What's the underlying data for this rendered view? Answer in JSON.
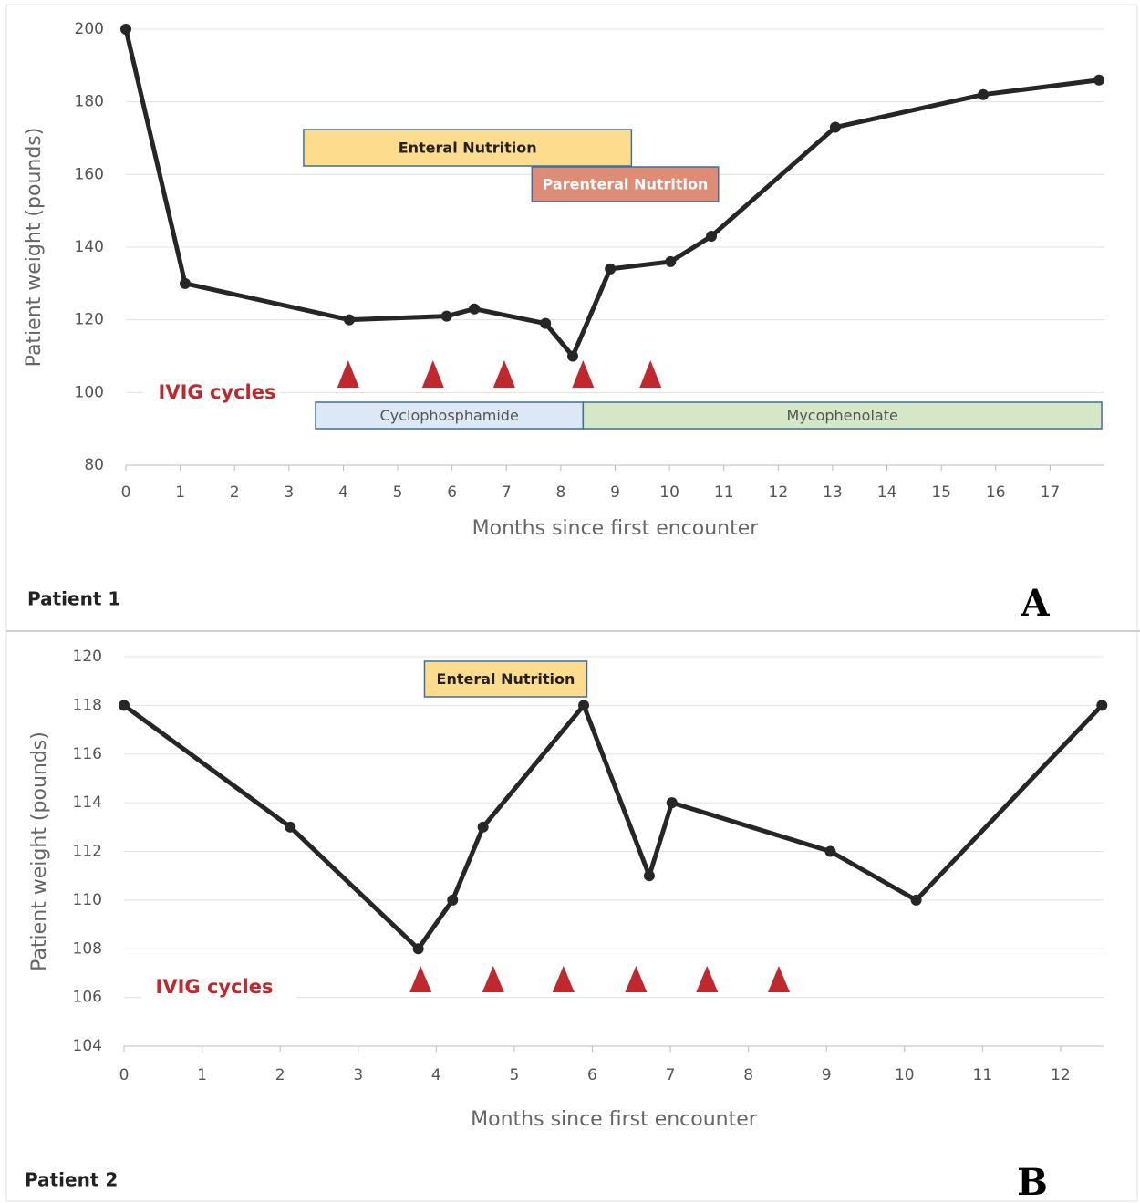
{
  "chart_data": [
    {
      "type": "line",
      "panel": "Patient 1",
      "letter": "A",
      "x_label": "Months since first encounter",
      "y_label": "Patient weight (pounds)",
      "x": [
        0,
        1.09,
        4.11,
        5.9,
        6.41,
        7.72,
        8.22,
        8.91,
        10.02,
        10.77,
        13.05,
        15.77,
        17.9
      ],
      "series": [
        {
          "color": "#262626",
          "values": [
            200,
            130,
            120,
            121,
            123,
            119,
            110,
            134,
            136,
            143,
            173,
            182,
            186
          ]
        }
      ],
      "xlim": [
        0,
        18
      ],
      "ylim": [
        80,
        200
      ],
      "xticks": [
        0,
        1,
        2,
        3,
        4,
        5,
        6,
        7,
        8,
        9,
        10,
        11,
        12,
        13,
        14,
        15,
        16,
        17
      ],
      "yticks": [
        80,
        100,
        120,
        140,
        160,
        180,
        200
      ],
      "grid": true,
      "ivig": {
        "label": "IVIG cycles",
        "color": "#c0282d",
        "x": [
          4.09,
          5.65,
          6.96,
          8.41,
          9.65
        ]
      },
      "spans": [
        {
          "label": "Enteral Nutrition",
          "start": 3.27,
          "end": 9.3,
          "color": "#fddc8e",
          "text_color": "#222222"
        },
        {
          "label": "Parenteral Nutrition",
          "start": 7.47,
          "end": 10.9,
          "color": "#de8c75",
          "text_color": "#ffffff"
        },
        {
          "label": "Cyclophosphamide",
          "start": 3.49,
          "end": 8.41,
          "color": "#dce8f5",
          "text_color": "#555555"
        },
        {
          "label": "Mycophenolate",
          "start": 8.41,
          "end": 17.95,
          "color": "#d6e7c7",
          "text_color": "#555555"
        }
      ]
    },
    {
      "type": "line",
      "panel": "Patient 2",
      "letter": "B",
      "x_label": "Months since first encounter",
      "y_label": "Patient weight (pounds)",
      "x": [
        0,
        2.13,
        3.77,
        4.21,
        4.6,
        5.89,
        6.73,
        7.02,
        9.05,
        10.15,
        12.53
      ],
      "series": [
        {
          "color": "#262626",
          "values": [
            118,
            113,
            108,
            110,
            113,
            118,
            111,
            114,
            112,
            110,
            118
          ]
        }
      ],
      "xlim": [
        0,
        12.55
      ],
      "ylim": [
        104,
        120
      ],
      "xticks": [
        0,
        1,
        2,
        3,
        4,
        5,
        6,
        7,
        8,
        9,
        10,
        11,
        12
      ],
      "yticks": [
        104,
        106,
        108,
        110,
        112,
        114,
        116,
        118,
        120
      ],
      "grid": true,
      "ivig": {
        "label": "IVIG cycles",
        "color": "#c0282d",
        "x": [
          3.8,
          4.73,
          5.63,
          6.56,
          7.47,
          8.39
        ]
      },
      "spans": [
        {
          "label": "Enteral Nutrition",
          "start": 3.85,
          "end": 5.93,
          "color": "#fddc8e",
          "text_color": "#222222"
        }
      ]
    }
  ]
}
